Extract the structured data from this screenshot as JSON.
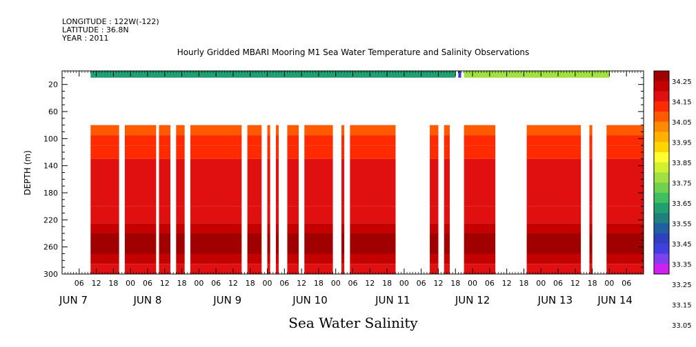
{
  "header": {
    "longitude": "LONGITUDE : 122W(-122)",
    "latitude": "LATITUDE : 36.8N",
    "year": "YEAR : 2011"
  },
  "chart_data": {
    "type": "heatmap",
    "title": "Hourly Gridded MBARI Mooring M1 Sea Water Temperature and Salinity Observations",
    "xlabel": "",
    "ylabel": "DEPTH (m)",
    "bottom_caption": "Sea Water Salinity",
    "xlim_hours": [
      0,
      204
    ],
    "x_origin": "JUN 7 00",
    "ylim": [
      300,
      0
    ],
    "y_ticks": [
      20,
      60,
      100,
      140,
      180,
      220,
      260,
      300
    ],
    "hour_tick_labels": [
      "06",
      "12",
      "18",
      "00",
      "06",
      "12",
      "18",
      "00",
      "06",
      "12",
      "18",
      "00",
      "06",
      "12",
      "18",
      "00",
      "06",
      "12",
      "18",
      "00",
      "06",
      "12",
      "18",
      "00",
      "06",
      "12",
      "18",
      "00",
      "06",
      "12",
      "18",
      "00",
      "06"
    ],
    "day_labels": [
      {
        "label": "JUN  7",
        "hour": 4
      },
      {
        "label": "JUN  8",
        "hour": 30
      },
      {
        "label": "JUN  9",
        "hour": 58
      },
      {
        "label": "JUN 10",
        "hour": 87
      },
      {
        "label": "JUN 11",
        "hour": 116
      },
      {
        "label": "JUN 12",
        "hour": 144
      },
      {
        "label": "JUN 13",
        "hour": 173
      },
      {
        "label": "JUN 14",
        "hour": 194
      }
    ],
    "colorbar": {
      "levels": [
        "34.25",
        "34.15",
        "34.05",
        "33.95",
        "33.85",
        "33.75",
        "33.65",
        "33.55",
        "33.45",
        "33.35",
        "33.25",
        "33.15",
        "33.05"
      ],
      "colors": [
        "#a00000",
        "#c40000",
        "#e01010",
        "#ff2a00",
        "#ff5a00",
        "#ff8a00",
        "#ffb000",
        "#ffd500",
        "#ffff30",
        "#d0f030",
        "#a0e040",
        "#70d050",
        "#40c060",
        "#20a070",
        "#208080",
        "#2060a0",
        "#3040c0",
        "#4040e0",
        "#8040f0",
        "#d020f0"
      ]
    },
    "surface_band": {
      "depth_range": [
        0,
        10
      ],
      "segments": [
        {
          "start": 10,
          "end": 138,
          "salinity": 33.45
        },
        {
          "start": 139,
          "end": 140,
          "salinity": 33.25
        },
        {
          "start": 141,
          "end": 192,
          "salinity": 33.6
        }
      ]
    },
    "deep_layers": [
      {
        "top": 80,
        "bottom": 95,
        "salinity": 33.98
      },
      {
        "top": 95,
        "bottom": 110,
        "salinity": 34.03
      },
      {
        "top": 110,
        "bottom": 130,
        "salinity": 34.08
      },
      {
        "top": 130,
        "bottom": 200,
        "salinity": 34.12
      },
      {
        "top": 200,
        "bottom": 225,
        "salinity": 34.15
      },
      {
        "top": 225,
        "bottom": 240,
        "salinity": 34.2
      },
      {
        "top": 240,
        "bottom": 270,
        "salinity": 34.25
      },
      {
        "top": 270,
        "bottom": 285,
        "salinity": 34.2
      },
      {
        "top": 285,
        "bottom": 300,
        "salinity": 34.15
      }
    ],
    "data_segments": [
      [
        10,
        20
      ],
      [
        22,
        33
      ],
      [
        34,
        38
      ],
      [
        40,
        43
      ],
      [
        45,
        63
      ],
      [
        65,
        70
      ],
      [
        72,
        73
      ],
      [
        75,
        76
      ],
      [
        79,
        83
      ],
      [
        85,
        95
      ],
      [
        98,
        99
      ],
      [
        101,
        117
      ],
      [
        129,
        132
      ],
      [
        134,
        136
      ],
      [
        141,
        152
      ],
      [
        163,
        182
      ],
      [
        185,
        186
      ],
      [
        191,
        204
      ]
    ]
  }
}
